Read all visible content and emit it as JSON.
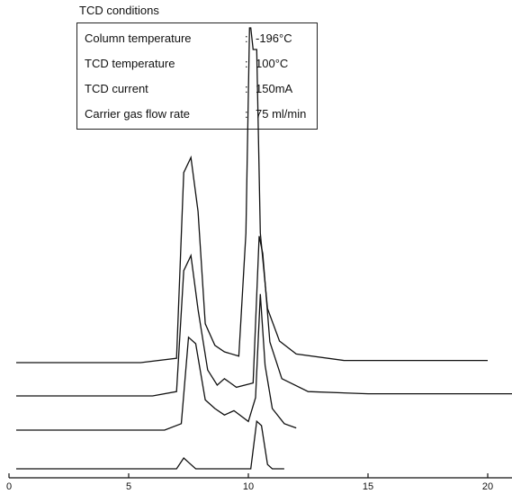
{
  "tcd": {
    "title": "TCD conditions",
    "rows": [
      {
        "label": "Column temperature",
        "sep": ":",
        "value": "-196°C"
      },
      {
        "label": "TCD  temperature",
        "sep": ":",
        "value": "100°C"
      },
      {
        "label": "TCD  current",
        "sep": ":",
        "value": "150mA"
      },
      {
        "label": "Carrier gas flow rate",
        "sep": ":",
        "value": "75 ml/min"
      }
    ]
  },
  "chart_data": {
    "type": "line",
    "title": "",
    "xlabel": "",
    "ylabel": "",
    "xlim": [
      0,
      22
    ],
    "xticks": [
      0,
      5,
      10,
      15,
      20
    ],
    "xtick_labels": [
      "0",
      "5",
      "10",
      "15",
      "20"
    ],
    "series": [
      {
        "x": [
          0,
          5.5,
          7.0,
          7.3,
          7.6,
          7.9,
          8.2,
          8.6,
          9.0,
          9.6,
          9.9,
          10.05,
          10.1,
          10.2,
          10.35,
          10.5,
          10.8,
          11.3,
          12.0,
          14.0,
          20.0
        ],
        "y": [
          0,
          0,
          0.02,
          0.88,
          0.95,
          0.7,
          0.18,
          0.08,
          0.05,
          0.03,
          0.6,
          1.55,
          1.55,
          1.45,
          1.45,
          0.6,
          0.25,
          0.1,
          0.04,
          0.01,
          0.01
        ]
      },
      {
        "x": [
          0,
          6.0,
          7.0,
          7.3,
          7.6,
          7.9,
          8.3,
          8.7,
          9.0,
          9.5,
          10.2,
          10.45,
          10.6,
          10.9,
          11.4,
          12.5,
          15.0,
          22.0
        ],
        "y": [
          0,
          0,
          0.02,
          0.58,
          0.65,
          0.4,
          0.12,
          0.05,
          0.08,
          0.04,
          0.06,
          0.74,
          0.66,
          0.25,
          0.08,
          0.02,
          0.01,
          0.01
        ]
      },
      {
        "x": [
          0,
          6.5,
          7.2,
          7.5,
          7.8,
          8.2,
          8.6,
          9.0,
          9.4,
          10.0,
          10.3,
          10.5,
          10.7,
          11.0,
          11.5,
          12.0
        ],
        "y": [
          0,
          0,
          0.03,
          0.43,
          0.4,
          0.14,
          0.1,
          0.07,
          0.09,
          0.04,
          0.15,
          0.63,
          0.3,
          0.1,
          0.03,
          0.01
        ]
      },
      {
        "x": [
          0,
          7.0,
          7.3,
          7.5,
          7.8,
          10.1,
          10.35,
          10.55,
          10.8,
          11.0,
          11.5
        ],
        "y": [
          0,
          0,
          0.05,
          0.03,
          0.0,
          0.0,
          0.22,
          0.2,
          0.02,
          0.0,
          0.0
        ]
      }
    ]
  }
}
